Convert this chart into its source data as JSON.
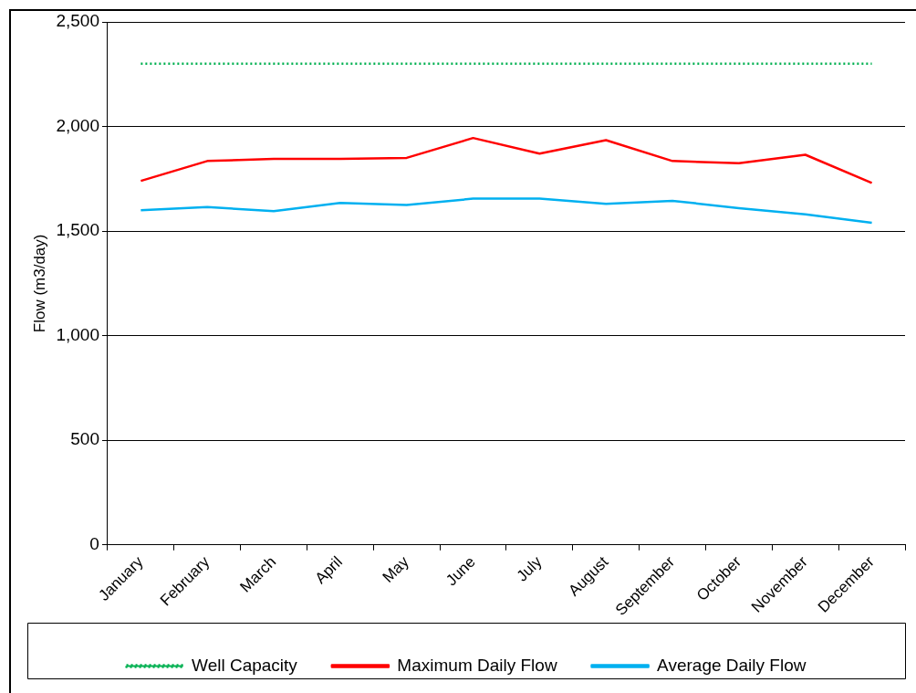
{
  "chart_data": {
    "type": "line",
    "ylabel": "Flow (m3/day)",
    "categories": [
      "January",
      "February",
      "March",
      "April",
      "May",
      "June",
      "July",
      "August",
      "September",
      "October",
      "November",
      "December"
    ],
    "series": [
      {
        "name": "Well Capacity",
        "color": "#00b050",
        "line_style": "dotted",
        "values": [
          2300,
          2300,
          2300,
          2300,
          2300,
          2300,
          2300,
          2300,
          2300,
          2300,
          2300,
          2300
        ]
      },
      {
        "name": "Maximum Daily Flow",
        "color": "#ff0000",
        "line_style": "solid",
        "values": [
          1740,
          1835,
          1845,
          1845,
          1850,
          1945,
          1870,
          1935,
          1835,
          1825,
          1865,
          1730
        ]
      },
      {
        "name": "Average Daily Flow",
        "color": "#00b0f0",
        "line_style": "solid",
        "values": [
          1600,
          1615,
          1595,
          1635,
          1625,
          1655,
          1655,
          1630,
          1645,
          1610,
          1580,
          1540
        ]
      }
    ],
    "ylim": [
      0,
      2500
    ],
    "yticks": [
      {
        "value": 0,
        "label": "0"
      },
      {
        "value": 500,
        "label": "500"
      },
      {
        "value": 1000,
        "label": "1,000"
      },
      {
        "value": 1500,
        "label": "1,500"
      },
      {
        "value": 2000,
        "label": "2,000"
      },
      {
        "value": 2500,
        "label": "2,500"
      }
    ],
    "grid": "y",
    "legend": "bottom",
    "marker": "none"
  }
}
